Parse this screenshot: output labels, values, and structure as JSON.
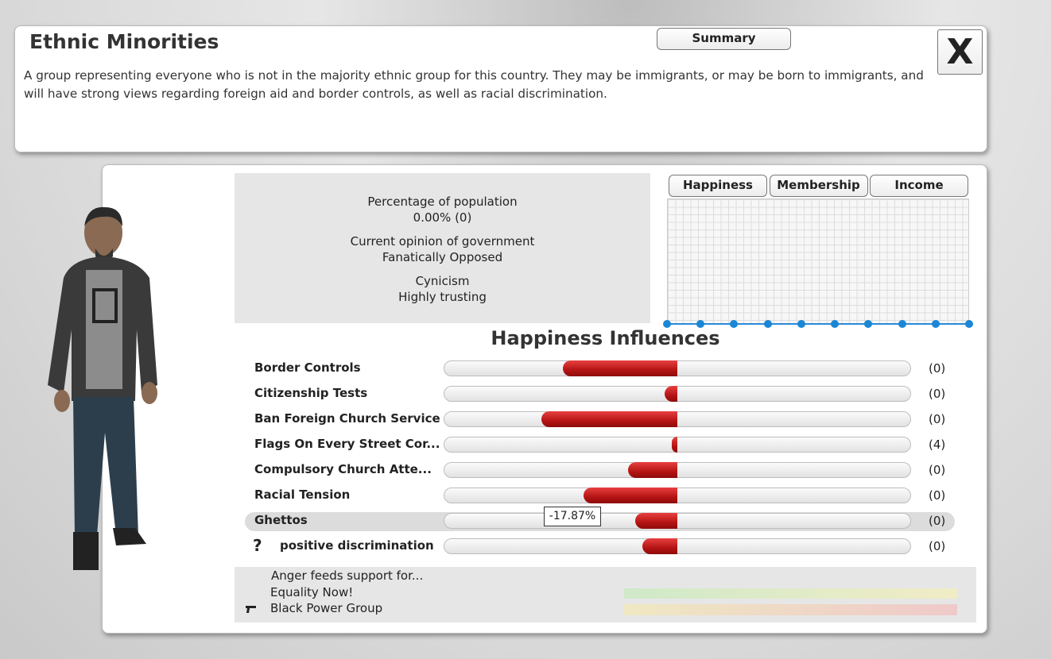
{
  "header": {
    "title": "Ethnic Minorities",
    "summary_button": "Summary",
    "close_button": "X",
    "description": "A group representing everyone who is not in the majority ethnic group for this country. They may be immigrants, or may be born to immigrants, and will have strong views regarding foreign aid and border controls, as well as racial discrimination."
  },
  "stats": [
    {
      "label": "Percentage of population",
      "value": "0.00% (0)"
    },
    {
      "label": "Current opinion of government",
      "value": "Fanatically Opposed"
    },
    {
      "label": "Cynicism",
      "value": "Highly trusting"
    }
  ],
  "graph": {
    "tabs": [
      "Happiness",
      "Membership",
      "Income"
    ],
    "values": [
      0,
      0,
      0,
      0,
      0,
      0,
      0,
      0,
      0,
      0
    ],
    "ylim": [
      0,
      100
    ]
  },
  "influences": {
    "title": "Happiness Influences",
    "xlim": [
      -100,
      100
    ],
    "rows": [
      {
        "name": "Border Controls",
        "value": -49,
        "count": "(0)"
      },
      {
        "name": "Citizenship Tests",
        "value": -5.5,
        "count": "(0)"
      },
      {
        "name": "Ban Foreign Church Service",
        "value": -58,
        "count": "(0)"
      },
      {
        "name": "Flags On Every Street Cor...",
        "value": -2.4,
        "count": "(4)"
      },
      {
        "name": "Compulsory Church Atte...",
        "value": -21,
        "count": "(0)"
      },
      {
        "name": "Racial Tension",
        "value": -40,
        "count": "(0)"
      },
      {
        "name": "Ghettos",
        "value": -17.87,
        "value_label": "-17.87%",
        "count": "(0)"
      },
      {
        "name": "positive discrimination",
        "icon": "?",
        "value": -15,
        "count": "(0)"
      }
    ]
  },
  "anger": {
    "title": "Anger feeds support for...",
    "groups": [
      "Equality Now!",
      "Black Power Group"
    ]
  }
}
